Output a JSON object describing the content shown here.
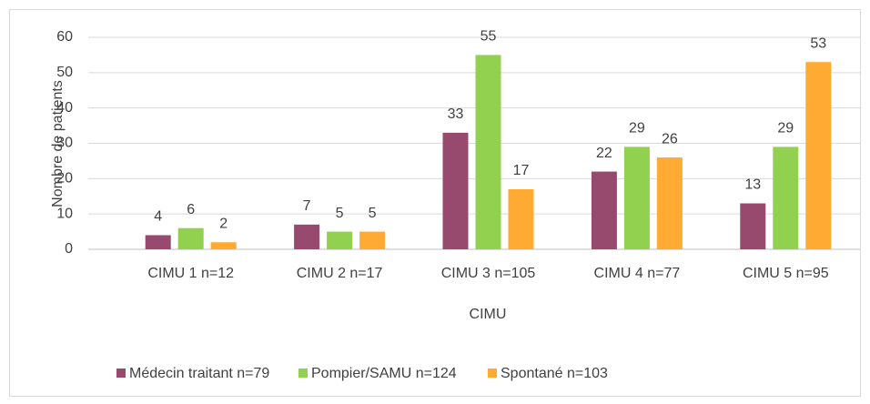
{
  "chart_data": {
    "type": "bar",
    "x_label": "CIMU",
    "y_label": "Nombre de patients",
    "categories": [
      "CIMU 1 n=12",
      "CIMU 2 n=17",
      "CIMU 3 n=105",
      "CIMU 4 n=77",
      "CIMU 5 n=95"
    ],
    "series": [
      {
        "name": "Médecin traitant n=79",
        "color": "#984a6e",
        "values": [
          4,
          7,
          33,
          22,
          13
        ]
      },
      {
        "name": "Pompier/SAMU n=124",
        "color": "#92d050",
        "values": [
          6,
          5,
          55,
          29,
          29
        ]
      },
      {
        "name": "Spontané n=103",
        "color": "#ffaa33",
        "values": [
          2,
          5,
          17,
          26,
          53
        ]
      }
    ],
    "ylim": [
      0,
      60
    ],
    "yticks": [
      0,
      10,
      20,
      30,
      40,
      50,
      60
    ],
    "grid": true,
    "legend": "bottom"
  }
}
